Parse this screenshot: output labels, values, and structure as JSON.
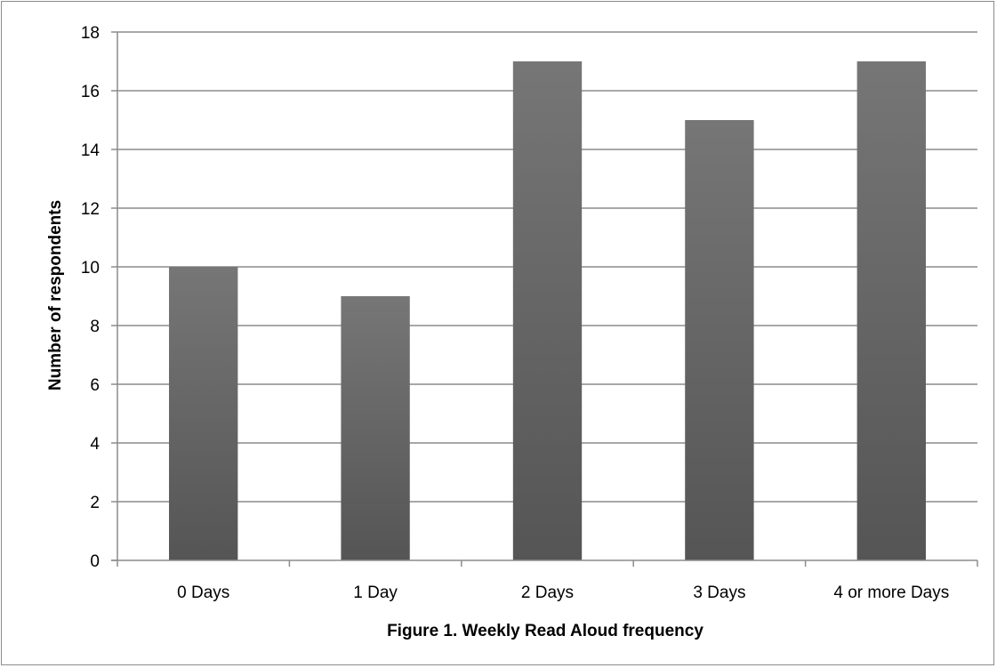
{
  "chart_data": {
    "type": "bar",
    "categories": [
      "0 Days",
      "1 Day",
      "2 Days",
      "3 Days",
      "4 or more Days"
    ],
    "values": [
      10,
      9,
      17,
      15,
      17
    ],
    "xlabel": "Figure 1. Weekly Read Aloud frequency",
    "ylabel": "Number of respondents",
    "ylim": [
      0,
      18
    ],
    "yticks": [
      0,
      2,
      4,
      6,
      8,
      10,
      12,
      14,
      16,
      18
    ],
    "grid": true,
    "legend": "none",
    "bar_color_top": "#767676",
    "bar_color_bottom": "#555555"
  }
}
